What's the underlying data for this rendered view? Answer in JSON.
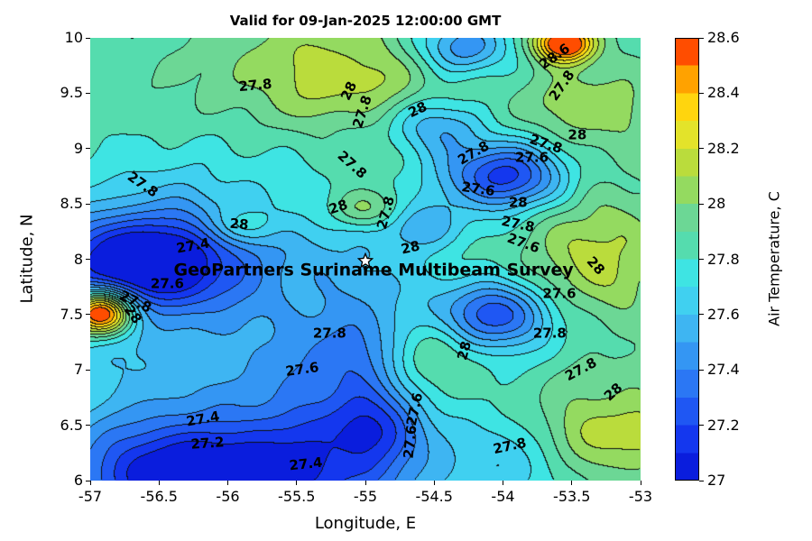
{
  "chart_data": {
    "type": "contour",
    "title": "Valid for 09-Jan-2025 12:00:00 GMT",
    "xlabel": "Longitude, E",
    "ylabel": "Latitude, N",
    "xlim": [
      -57,
      -53
    ],
    "ylim": [
      6,
      10
    ],
    "xticks": {
      "values": [
        -57,
        -56.5,
        -56,
        -55.5,
        -55,
        -54.5,
        -54,
        -53.5,
        -53
      ],
      "labels": [
        "-57",
        "-56.5",
        "-56",
        "-55.5",
        "-55",
        "-54.5",
        "-54",
        "-53.5",
        "-53"
      ]
    },
    "yticks": {
      "values": [
        6,
        6.5,
        7,
        7.5,
        8,
        8.5,
        9,
        9.5,
        10
      ],
      "labels": [
        "6",
        "6.5",
        "7",
        "7.5",
        "8",
        "8.5",
        "9",
        "9.5",
        "10"
      ]
    },
    "colorbar": {
      "label": "Air Temperature, C",
      "min": 27,
      "max": 28.6,
      "tick_values": [
        27,
        27.2,
        27.4,
        27.6,
        27.8,
        28,
        28.2,
        28.4,
        28.6
      ],
      "tick_labels": [
        "27",
        "27.2",
        "27.4",
        "27.6",
        "27.8",
        "28",
        "28.2",
        "28.4",
        "28.6"
      ]
    },
    "level_min": 27.0,
    "level_step": 0.1,
    "level_max": 28.6,
    "band_colors": [
      "#0a1ddd",
      "#1437ee",
      "#1f57f3",
      "#2b77f4",
      "#3496f3",
      "#3eb5f2",
      "#40d0f0",
      "#3ee4e3",
      "#55dcae",
      "#6cd795",
      "#94da60",
      "#badc3c",
      "#e3e32a",
      "#ffd50e",
      "#ffa200",
      "#ff4d00"
    ],
    "base_value": 27.86,
    "texture": [
      0.03,
      0.018
    ],
    "bumps": [
      [
        -56.3,
        6.0,
        0.9,
        0.5,
        -0.55
      ],
      [
        -56.35,
        6.05,
        0.45,
        0.3,
        -0.35
      ],
      [
        -55.45,
        6.1,
        0.5,
        0.35,
        -0.3
      ],
      [
        -54.0,
        6.15,
        0.35,
        0.3,
        -0.25
      ],
      [
        -56.6,
        8.0,
        0.5,
        0.3,
        -0.8
      ],
      [
        -56.55,
        7.8,
        0.8,
        0.55,
        -0.25
      ],
      [
        -56.92,
        7.52,
        0.16,
        0.14,
        1.15
      ],
      [
        -55.0,
        6.8,
        0.35,
        0.7,
        -0.35
      ],
      [
        -54.85,
        6.45,
        0.2,
        0.2,
        -0.2
      ],
      [
        -54.05,
        7.5,
        0.3,
        0.22,
        -0.6
      ],
      [
        -54.0,
        8.75,
        0.32,
        0.22,
        -0.7
      ],
      [
        -53.55,
        9.95,
        0.15,
        0.12,
        0.9
      ],
      [
        -55.25,
        9.7,
        0.55,
        0.33,
        0.3
      ],
      [
        -54.5,
        9.2,
        0.22,
        0.18,
        -0.35
      ],
      [
        -54.3,
        9.92,
        0.25,
        0.18,
        -0.45
      ],
      [
        -55.0,
        8.45,
        0.2,
        0.13,
        0.28
      ],
      [
        -55.9,
        8.3,
        0.18,
        0.12,
        0.25
      ],
      [
        -54.55,
        7.1,
        0.25,
        0.3,
        0.3
      ],
      [
        -53.3,
        8.0,
        0.35,
        0.4,
        0.28
      ],
      [
        -53.2,
        6.45,
        0.45,
        0.3,
        0.3
      ],
      [
        -53.35,
        9.35,
        0.35,
        0.25,
        0.22
      ],
      [
        -56.3,
        8.75,
        0.45,
        0.3,
        -0.12
      ],
      [
        -55.25,
        8.05,
        0.5,
        0.45,
        -0.15
      ],
      [
        -54.6,
        8.3,
        0.22,
        0.16,
        -0.25
      ],
      [
        -55.6,
        7.0,
        0.9,
        0.45,
        -0.22
      ]
    ],
    "contour_labels": [
      {
        "text": "27.8",
        "lon": -55.8,
        "lat": 9.57,
        "rot": -5
      },
      {
        "text": "28",
        "lon": -55.12,
        "lat": 9.52,
        "rot": -65
      },
      {
        "text": "27.8",
        "lon": -55.02,
        "lat": 9.33,
        "rot": -72
      },
      {
        "text": "28",
        "lon": -54.62,
        "lat": 9.35,
        "rot": -25
      },
      {
        "text": "28.6",
        "lon": -53.62,
        "lat": 9.83,
        "rot": -35
      },
      {
        "text": "27.8",
        "lon": -53.57,
        "lat": 9.57,
        "rot": -55
      },
      {
        "text": "27.8",
        "lon": -56.62,
        "lat": 8.67,
        "rot": 35
      },
      {
        "text": "27.8",
        "lon": -55.1,
        "lat": 8.85,
        "rot": 42
      },
      {
        "text": "28",
        "lon": -55.92,
        "lat": 8.31,
        "rot": 5
      },
      {
        "text": "28",
        "lon": -55.2,
        "lat": 8.47,
        "rot": -18
      },
      {
        "text": "27.8",
        "lon": -54.85,
        "lat": 8.42,
        "rot": -75
      },
      {
        "text": "28",
        "lon": -54.67,
        "lat": 8.1,
        "rot": -12
      },
      {
        "text": "27.8",
        "lon": -54.21,
        "lat": 8.96,
        "rot": -30
      },
      {
        "text": "27.6",
        "lon": -54.18,
        "lat": 8.63,
        "rot": 8
      },
      {
        "text": "27.6",
        "lon": -53.79,
        "lat": 8.92,
        "rot": 0
      },
      {
        "text": "27.8",
        "lon": -53.69,
        "lat": 9.04,
        "rot": 18
      },
      {
        "text": "28",
        "lon": -53.46,
        "lat": 9.12,
        "rot": 0
      },
      {
        "text": "28",
        "lon": -53.89,
        "lat": 8.51,
        "rot": 0
      },
      {
        "text": "27.8",
        "lon": -53.89,
        "lat": 8.31,
        "rot": 12
      },
      {
        "text": "27.6",
        "lon": -53.85,
        "lat": 8.14,
        "rot": 20
      },
      {
        "text": "28",
        "lon": -53.33,
        "lat": 7.94,
        "rot": 48
      },
      {
        "text": "27.6",
        "lon": -53.59,
        "lat": 7.69,
        "rot": 0
      },
      {
        "text": "27.8",
        "lon": -53.66,
        "lat": 7.33,
        "rot": 0
      },
      {
        "text": "27.8",
        "lon": -53.43,
        "lat": 7.0,
        "rot": -28
      },
      {
        "text": "28",
        "lon": -53.2,
        "lat": 6.8,
        "rot": -42
      },
      {
        "text": "27.6",
        "lon": -56.44,
        "lat": 7.78,
        "rot": 0
      },
      {
        "text": "27.8",
        "lon": -56.67,
        "lat": 7.61,
        "rot": 25
      },
      {
        "text": "28",
        "lon": -56.69,
        "lat": 7.5,
        "rot": 55
      },
      {
        "text": "27.4",
        "lon": -56.25,
        "lat": 8.12,
        "rot": -10
      },
      {
        "text": "27.8",
        "lon": -55.26,
        "lat": 7.33,
        "rot": 0
      },
      {
        "text": "27.6",
        "lon": -55.46,
        "lat": 7.0,
        "rot": -8
      },
      {
        "text": "27.4",
        "lon": -56.18,
        "lat": 6.55,
        "rot": -10
      },
      {
        "text": "27.2",
        "lon": -56.15,
        "lat": 6.33,
        "rot": -4
      },
      {
        "text": "27.4",
        "lon": -55.43,
        "lat": 6.15,
        "rot": -6
      },
      {
        "text": "27.6",
        "lon": -54.64,
        "lat": 6.64,
        "rot": -78
      },
      {
        "text": "27.6",
        "lon": -54.67,
        "lat": 6.35,
        "rot": -84
      },
      {
        "text": "28",
        "lon": -54.28,
        "lat": 7.17,
        "rot": -75
      },
      {
        "text": "27.8",
        "lon": -53.95,
        "lat": 6.31,
        "rot": -12
      }
    ],
    "annotation": {
      "text": "GeoPartners Suriname Multibeam Survey",
      "lon": -54.94,
      "lat": 7.9
    },
    "star_marker": {
      "symbol": "star",
      "lon": -55.0,
      "lat": 7.99
    }
  }
}
